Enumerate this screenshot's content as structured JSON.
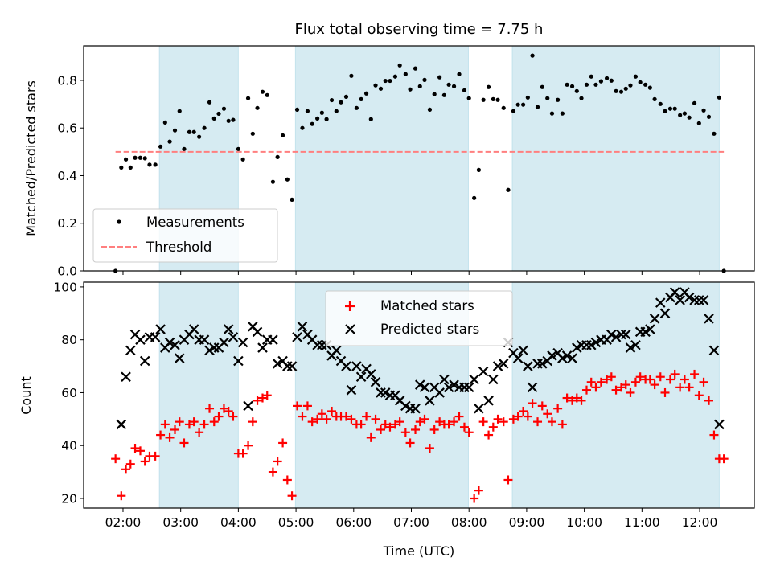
{
  "chart_data": [
    {
      "type": "scatter",
      "title": "Flux total observing time = 7.75 h",
      "xlabel": "",
      "ylabel": "Matched/Predicted stars",
      "xlim": [
        1.317,
        12.948
      ],
      "ylim": [
        0,
        0.945
      ],
      "yticks": [
        "0.0",
        "0.2",
        "0.4",
        "0.6",
        "0.8"
      ],
      "ytick_values": [
        0,
        0.2,
        0.4,
        0.6,
        0.8
      ],
      "legend": {
        "placement": "lower-left",
        "entries": [
          "Measurements",
          "Threshold"
        ]
      },
      "threshold": {
        "value": 0.5,
        "x_range": [
          1.87,
          12.42
        ],
        "color": "#ff7f7f"
      },
      "shaded_spans": [
        [
          2.63,
          4.0
        ],
        [
          4.99,
          7.99
        ],
        [
          8.75,
          12.34
        ]
      ],
      "span_color": "#add8e6",
      "series": [
        {
          "name": "Measurements",
          "color": "#000000",
          "x": [
            1.87,
            1.97,
            2.05,
            2.13,
            2.21,
            2.3,
            2.38,
            2.46,
            2.56,
            2.65,
            2.73,
            2.81,
            2.9,
            2.98,
            3.06,
            3.15,
            3.23,
            3.32,
            3.41,
            3.5,
            3.58,
            3.66,
            3.75,
            3.83,
            3.91,
            4.0,
            4.08,
            4.17,
            4.25,
            4.33,
            4.42,
            4.5,
            4.6,
            4.68,
            4.77,
            4.85,
            4.93,
            5.02,
            5.11,
            5.2,
            5.28,
            5.37,
            5.45,
            5.53,
            5.62,
            5.7,
            5.78,
            5.87,
            5.96,
            6.05,
            6.13,
            6.22,
            6.3,
            6.38,
            6.47,
            6.55,
            6.63,
            6.72,
            6.8,
            6.9,
            6.98,
            7.07,
            7.15,
            7.23,
            7.32,
            7.4,
            7.49,
            7.57,
            7.65,
            7.74,
            7.83,
            7.92,
            8.0,
            8.09,
            8.17,
            8.25,
            8.34,
            8.42,
            8.5,
            8.6,
            8.68,
            8.77,
            8.85,
            8.94,
            9.02,
            9.1,
            9.19,
            9.27,
            9.36,
            9.44,
            9.54,
            9.62,
            9.7,
            9.79,
            9.87,
            9.95,
            10.04,
            10.12,
            10.2,
            10.29,
            10.39,
            10.47,
            10.55,
            10.64,
            10.72,
            10.8,
            10.89,
            10.97,
            11.06,
            11.14,
            11.22,
            11.32,
            11.4,
            11.49,
            11.57,
            11.66,
            11.74,
            11.82,
            11.91,
            11.99,
            12.07,
            12.16,
            12.25,
            12.34,
            12.42
          ],
          "y": [
            0.0,
            0.434,
            0.468,
            0.434,
            0.475,
            0.475,
            0.473,
            0.446,
            0.446,
            0.522,
            0.623,
            0.543,
            0.59,
            0.671,
            0.512,
            0.583,
            0.583,
            0.563,
            0.6,
            0.708,
            0.64,
            0.66,
            0.681,
            0.63,
            0.634,
            0.512,
            0.468,
            0.725,
            0.576,
            0.684,
            0.752,
            0.738,
            0.374,
            0.478,
            0.569,
            0.384,
            0.299,
            0.677,
            0.6,
            0.671,
            0.617,
            0.64,
            0.664,
            0.637,
            0.717,
            0.671,
            0.708,
            0.731,
            0.819,
            0.684,
            0.721,
            0.745,
            0.637,
            0.779,
            0.765,
            0.798,
            0.798,
            0.816,
            0.863,
            0.826,
            0.762,
            0.85,
            0.775,
            0.802,
            0.677,
            0.742,
            0.813,
            0.738,
            0.782,
            0.775,
            0.826,
            0.758,
            0.725,
            0.306,
            0.424,
            0.718,
            0.772,
            0.721,
            0.718,
            0.684,
            0.34,
            0.671,
            0.698,
            0.698,
            0.728,
            0.904,
            0.688,
            0.772,
            0.725,
            0.661,
            0.718,
            0.661,
            0.782,
            0.775,
            0.755,
            0.725,
            0.782,
            0.816,
            0.782,
            0.796,
            0.809,
            0.799,
            0.755,
            0.752,
            0.765,
            0.779,
            0.816,
            0.792,
            0.782,
            0.769,
            0.721,
            0.701,
            0.671,
            0.681,
            0.681,
            0.654,
            0.661,
            0.644,
            0.704,
            0.62,
            0.674,
            0.647,
            0.576,
            0.728,
            0.0
          ]
        }
      ]
    },
    {
      "type": "scatter",
      "title": "",
      "xlabel": "Time (UTC)",
      "ylabel": "Count",
      "xlim": [
        1.317,
        12.948
      ],
      "ylim": [
        16.35,
        101.8
      ],
      "yticks": [
        "20",
        "40",
        "60",
        "80",
        "100"
      ],
      "ytick_values": [
        20,
        40,
        60,
        80,
        100
      ],
      "xticks": [
        "02:00",
        "03:00",
        "04:00",
        "05:00",
        "06:00",
        "07:00",
        "08:00",
        "09:00",
        "10:00",
        "11:00",
        "12:00"
      ],
      "xtick_values": [
        2,
        3,
        4,
        5,
        6,
        7,
        8,
        9,
        10,
        11,
        12
      ],
      "legend": {
        "placement": "upper-center",
        "entries": [
          "Matched stars",
          "Predicted stars"
        ]
      },
      "shaded_spans": [
        [
          2.63,
          4.0
        ],
        [
          4.99,
          7.99
        ],
        [
          8.75,
          12.34
        ]
      ],
      "span_color": "#add8e6",
      "x": [
        1.87,
        1.97,
        2.05,
        2.13,
        2.21,
        2.3,
        2.38,
        2.46,
        2.56,
        2.65,
        2.73,
        2.81,
        2.9,
        2.98,
        3.06,
        3.15,
        3.23,
        3.32,
        3.41,
        3.5,
        3.58,
        3.66,
        3.75,
        3.83,
        3.91,
        4.0,
        4.08,
        4.17,
        4.25,
        4.33,
        4.42,
        4.5,
        4.6,
        4.68,
        4.77,
        4.85,
        4.93,
        5.02,
        5.11,
        5.2,
        5.28,
        5.37,
        5.45,
        5.53,
        5.62,
        5.7,
        5.78,
        5.87,
        5.96,
        6.05,
        6.13,
        6.22,
        6.3,
        6.38,
        6.47,
        6.55,
        6.63,
        6.72,
        6.8,
        6.9,
        6.98,
        7.07,
        7.15,
        7.23,
        7.32,
        7.4,
        7.49,
        7.57,
        7.65,
        7.74,
        7.83,
        7.92,
        8.0,
        8.09,
        8.17,
        8.25,
        8.34,
        8.42,
        8.5,
        8.6,
        8.68,
        8.77,
        8.85,
        8.94,
        9.02,
        9.1,
        9.19,
        9.27,
        9.36,
        9.44,
        9.54,
        9.62,
        9.7,
        9.79,
        9.87,
        9.95,
        10.04,
        10.12,
        10.2,
        10.29,
        10.39,
        10.47,
        10.55,
        10.64,
        10.72,
        10.8,
        10.89,
        10.97,
        11.06,
        11.14,
        11.22,
        11.32,
        11.4,
        11.49,
        11.57,
        11.66,
        11.74,
        11.82,
        11.91,
        11.99,
        12.07,
        12.16,
        12.25,
        12.34,
        12.42
      ],
      "series": [
        {
          "name": "Matched stars",
          "marker": "+",
          "color": "#ff0000",
          "values": [
            35,
            21,
            31,
            33,
            39,
            38,
            34,
            36,
            36,
            44,
            48,
            43,
            46,
            49,
            41,
            48,
            49,
            45,
            48,
            54,
            49,
            51,
            54,
            53,
            51,
            37,
            37,
            40,
            49,
            57,
            58,
            59,
            30,
            34,
            41,
            27,
            21,
            55,
            51,
            55,
            49,
            50,
            52,
            50,
            53,
            51,
            51,
            51,
            50,
            48,
            48,
            51,
            43,
            50,
            46,
            48,
            47,
            48,
            49,
            45,
            41,
            46,
            49,
            50,
            39,
            46,
            49,
            48,
            48,
            49,
            51,
            47,
            45,
            20,
            23,
            49,
            44,
            47,
            50,
            49,
            27,
            50,
            51,
            53,
            51,
            56,
            49,
            55,
            52,
            49,
            54,
            48,
            58,
            57,
            58,
            57,
            61,
            64,
            62,
            64,
            65,
            66,
            61,
            62,
            63,
            60,
            64,
            66,
            65,
            65,
            63,
            66,
            60,
            65,
            67,
            62,
            65,
            62,
            67,
            59,
            64,
            57,
            44,
            35,
            35
          ]
        },
        {
          "name": "Predicted stars",
          "marker": "x",
          "color": "#000000",
          "values": [
            null,
            48,
            66,
            76,
            82,
            80,
            72,
            81,
            81,
            84,
            77,
            79,
            78,
            73,
            80,
            82,
            84,
            80,
            80,
            76,
            77,
            77,
            79,
            84,
            81,
            72,
            79,
            55,
            85,
            83,
            77,
            80,
            80,
            71,
            72,
            70,
            70,
            81,
            85,
            82,
            80,
            78,
            78,
            78,
            74,
            76,
            72,
            70,
            61,
            70,
            66,
            69,
            67,
            64,
            60,
            60,
            59,
            59,
            57,
            55,
            54,
            54,
            63,
            62,
            57,
            62,
            60,
            65,
            62,
            63,
            62,
            62,
            62,
            65,
            54,
            68,
            57,
            65,
            70,
            71,
            79,
            75,
            73,
            76,
            70,
            62,
            71,
            71,
            72,
            74,
            75,
            73,
            74,
            73,
            77,
            78,
            78,
            78,
            79,
            80,
            80,
            82,
            81,
            82,
            82,
            77,
            78,
            83,
            83,
            84,
            88,
            94,
            90,
            96,
            98,
            95,
            98,
            96,
            95,
            95,
            95,
            88,
            76,
            48,
            null
          ]
        }
      ]
    }
  ]
}
